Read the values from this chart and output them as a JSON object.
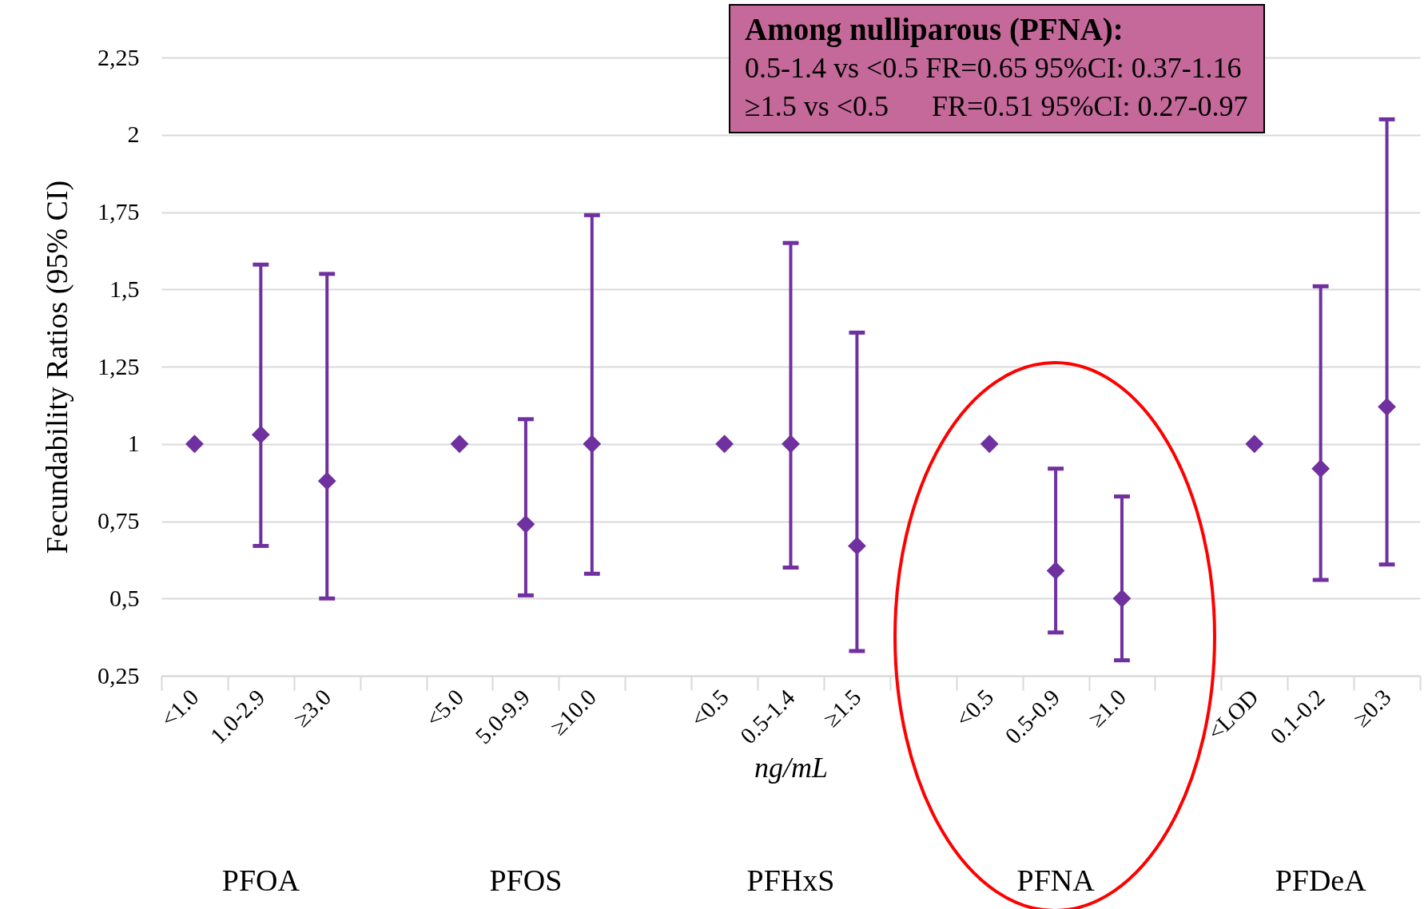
{
  "chart_data": {
    "type": "scatter",
    "categories": [
      "<1.0",
      "1.0-2.9",
      "≥3.0",
      null,
      "<5.0",
      "5.0-9.9",
      "≥10.0",
      null,
      "<0.5",
      "0.5-1.4",
      "≥1.5",
      null,
      "<0.5",
      "0.5-0.9",
      "≥1.0",
      null,
      "<LOD",
      "0.1-0.2",
      "≥0.3"
    ],
    "values": [
      1,
      1.03,
      0.88,
      null,
      1,
      0.74,
      1.0,
      null,
      1,
      1.0,
      0.67,
      null,
      1,
      0.59,
      0.5,
      null,
      1,
      0.92,
      1.12
    ],
    "errors": [
      null,
      [
        0.67,
        1.58
      ],
      [
        0.5,
        1.55
      ],
      null,
      null,
      [
        0.51,
        1.08
      ],
      [
        0.58,
        1.74
      ],
      null,
      null,
      [
        0.6,
        1.65
      ],
      [
        0.33,
        1.36
      ],
      null,
      null,
      [
        0.39,
        0.92
      ],
      [
        0.3,
        0.83
      ],
      null,
      null,
      [
        0.56,
        1.51
      ],
      [
        0.61,
        2.05
      ]
    ],
    "color": "#7030a0",
    "marker": "diamond",
    "xlabel": "ng/mL",
    "ylabel": "Fecundability Ratios (95% CI)",
    "ylim": [
      0.25,
      2.25
    ],
    "yticks": [
      {
        "value": 0.25,
        "label": "0,25"
      },
      {
        "value": 0.5,
        "label": "0,5"
      },
      {
        "value": 0.75,
        "label": "0,75"
      },
      1,
      {
        "value": 1.25,
        "label": "1,25"
      },
      {
        "value": 1.5,
        "label": "1,5"
      },
      {
        "value": 1.75,
        "label": "1,75"
      },
      2,
      {
        "value": 2.25,
        "label": "2,25"
      }
    ],
    "grid": "y",
    "annotations": [
      "PFOA",
      "PFOS",
      "PFHxS",
      "PFNA",
      "PFDeA",
      "Among nulliparous (PFNA):",
      "0.5-1.4 vs <0.5 FR=0.65 95%CI: 0.37-1.16",
      "≥1.5 vs <0.5      FR=0.51 95%CI: 0.27-0.97"
    ]
  }
}
